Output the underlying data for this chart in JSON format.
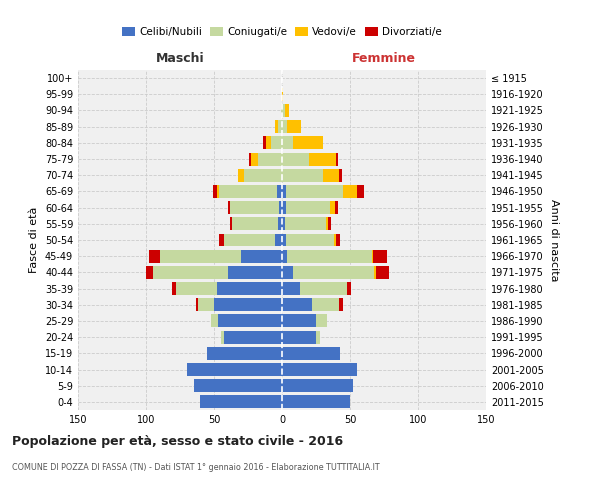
{
  "age_groups": [
    "0-4",
    "5-9",
    "10-14",
    "15-19",
    "20-24",
    "25-29",
    "30-34",
    "35-39",
    "40-44",
    "45-49",
    "50-54",
    "55-59",
    "60-64",
    "65-69",
    "70-74",
    "75-79",
    "80-84",
    "85-89",
    "90-94",
    "95-99",
    "100+"
  ],
  "birth_years": [
    "2011-2015",
    "2006-2010",
    "2001-2005",
    "1996-2000",
    "1991-1995",
    "1986-1990",
    "1981-1985",
    "1976-1980",
    "1971-1975",
    "1966-1970",
    "1961-1965",
    "1956-1960",
    "1951-1955",
    "1946-1950",
    "1941-1945",
    "1936-1940",
    "1931-1935",
    "1926-1930",
    "1921-1925",
    "1916-1920",
    "≤ 1915"
  ],
  "males": {
    "celibi": [
      60,
      65,
      70,
      55,
      43,
      47,
      50,
      48,
      40,
      30,
      5,
      3,
      2,
      4,
      0,
      0,
      0,
      0,
      0,
      0,
      0
    ],
    "coniugati": [
      0,
      0,
      0,
      0,
      2,
      5,
      12,
      30,
      55,
      60,
      38,
      34,
      36,
      42,
      28,
      18,
      8,
      3,
      1,
      0,
      0
    ],
    "vedovi": [
      0,
      0,
      0,
      0,
      0,
      0,
      0,
      0,
      0,
      0,
      0,
      0,
      0,
      2,
      4,
      5,
      4,
      2,
      0,
      0,
      0
    ],
    "divorziati": [
      0,
      0,
      0,
      0,
      0,
      0,
      1,
      3,
      5,
      8,
      3,
      1,
      2,
      3,
      0,
      1,
      2,
      0,
      0,
      0,
      0
    ]
  },
  "females": {
    "nubili": [
      50,
      52,
      55,
      43,
      25,
      25,
      22,
      13,
      8,
      4,
      3,
      2,
      3,
      3,
      0,
      0,
      0,
      0,
      0,
      0,
      0
    ],
    "coniugate": [
      0,
      0,
      0,
      0,
      3,
      8,
      20,
      35,
      60,
      62,
      35,
      30,
      32,
      42,
      30,
      20,
      8,
      4,
      2,
      0,
      0
    ],
    "vedove": [
      0,
      0,
      0,
      0,
      0,
      0,
      0,
      0,
      1,
      1,
      2,
      2,
      4,
      10,
      12,
      20,
      22,
      10,
      3,
      1,
      0
    ],
    "divorziate": [
      0,
      0,
      0,
      0,
      0,
      0,
      3,
      3,
      10,
      10,
      3,
      2,
      2,
      5,
      2,
      1,
      0,
      0,
      0,
      0,
      0
    ]
  },
  "colors": {
    "celibi": "#4472c4",
    "coniugati": "#c5d9a0",
    "vedovi": "#ffc000",
    "divorziati": "#cc0000"
  },
  "title": "Popolazione per età, sesso e stato civile - 2016",
  "subtitle": "COMUNE DI POZZA DI FASSA (TN) - Dati ISTAT 1° gennaio 2016 - Elaborazione TUTTITALIA.IT",
  "label_maschi": "Maschi",
  "label_femmine": "Femmine",
  "ylabel_left": "Fasce di età",
  "ylabel_right": "Anni di nascita",
  "legend": [
    "Celibi/Nubili",
    "Coniugati/e",
    "Vedovi/e",
    "Divorziati/e"
  ],
  "xlim": 150,
  "bg_color": "#f0f0f0",
  "grid_color": "#cccccc",
  "bar_height": 0.8
}
